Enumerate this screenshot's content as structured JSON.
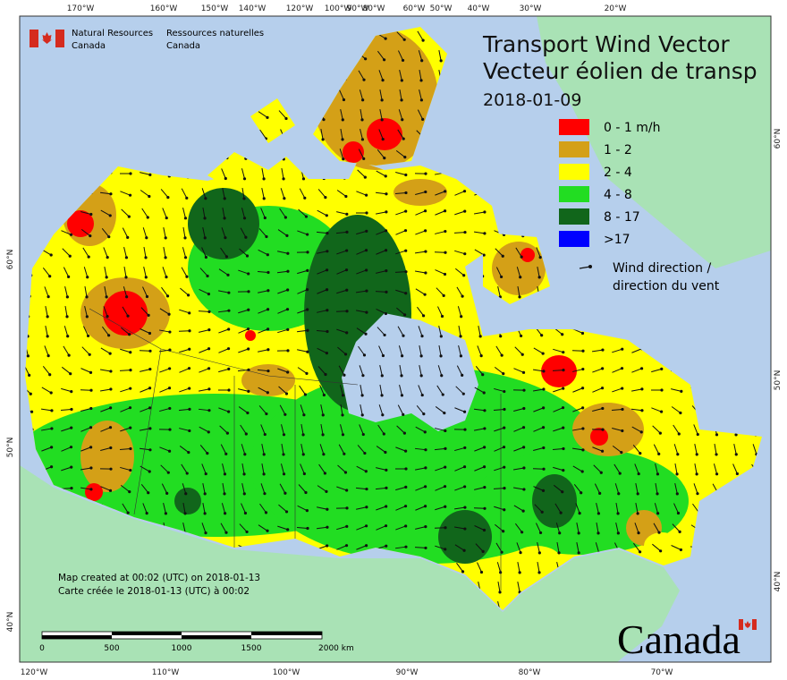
{
  "header": {
    "org_en": "Natural Resources",
    "country_en": "Canada",
    "org_fr": "Ressources naturelles",
    "country_fr": "Canada"
  },
  "title": {
    "en": "Transport Wind Vector",
    "fr": "Vecteur éolien de transp",
    "date": "2018-01-09"
  },
  "legend": {
    "items": [
      {
        "label": "0 - 1 m/h",
        "color": "#ff0000"
      },
      {
        "label": "1 - 2",
        "color": "#d4a017"
      },
      {
        "label": "2 - 4",
        "color": "#ffff00"
      },
      {
        "label": "4 - 8",
        "color": "#22dd22"
      },
      {
        "label": "8 - 17",
        "color": "#11661b"
      },
      {
        "label": ">17",
        "color": "#0000ff"
      }
    ],
    "arrow": {
      "line1": "Wind direction /",
      "line2": "direction du vent"
    }
  },
  "graticule": {
    "top": [
      "170°W",
      "160°W",
      "150°W",
      "140°W",
      "120°W",
      "100°W",
      "90°W",
      "80°W",
      "60°W",
      "50°W",
      "40°W",
      "30°W",
      "20°W"
    ],
    "bottom": [
      "120°W",
      "110°W",
      "100°W",
      "90°W",
      "80°W",
      "70°W"
    ],
    "left": [
      "60°N",
      "50°N",
      "40°N"
    ],
    "right": [
      "60°N",
      "50°N",
      "40°N"
    ]
  },
  "credits": [
    "Map created at 00:02 (UTC) on 2018-01-13",
    "Carte créée le 2018-01-13 (UTC) à 00:02"
  ],
  "scale": {
    "ticks": [
      "0",
      "500",
      "1000",
      "1500",
      "2000 km"
    ]
  },
  "wordmark": "Canada"
}
